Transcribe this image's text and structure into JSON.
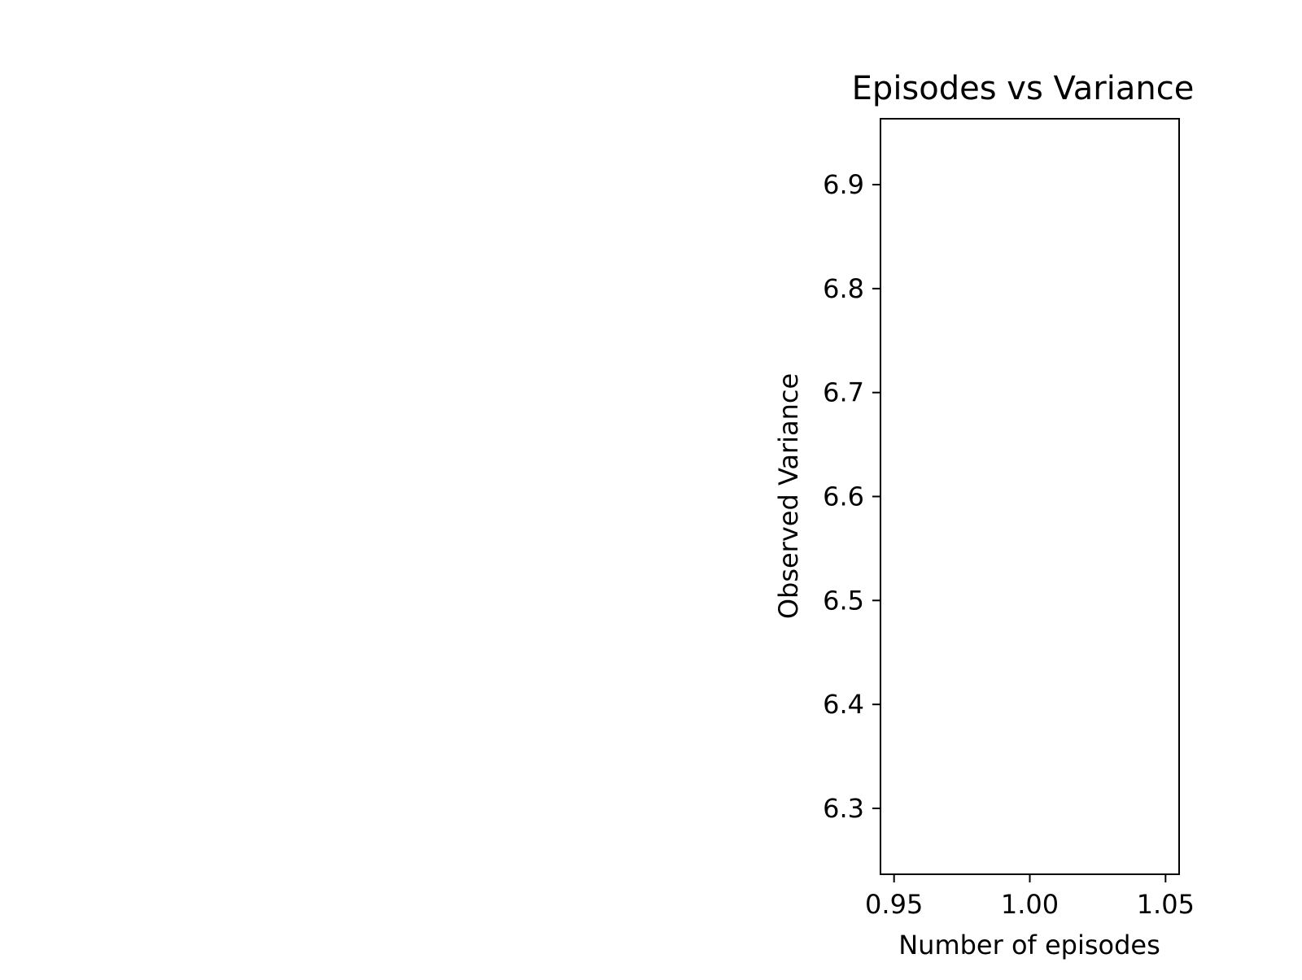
{
  "chart_data": {
    "type": "scatter",
    "title": "Episodes vs Variance",
    "xlabel": "Number of episodes",
    "ylabel": "Observed Variance",
    "xlim": [
      0.945,
      1.055
    ],
    "ylim": [
      6.2366,
      6.9634
    ],
    "xticks": [
      0.95,
      1.0,
      1.05
    ],
    "xtick_labels": [
      "0.95",
      "1.00",
      "1.05"
    ],
    "yticks": [
      6.3,
      6.4,
      6.5,
      6.6,
      6.7,
      6.8,
      6.9
    ],
    "ytick_labels": [
      "6.3",
      "6.4",
      "6.5",
      "6.6",
      "6.7",
      "6.8",
      "6.9"
    ],
    "grid": false,
    "series": [
      {
        "x": [],
        "y": []
      }
    ]
  }
}
